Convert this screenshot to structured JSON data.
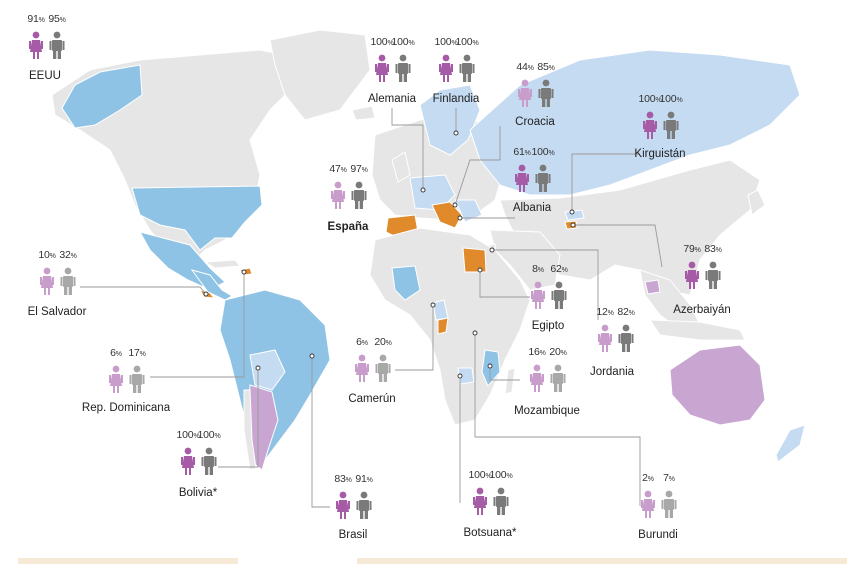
{
  "colors": {
    "ocean": "#ffffff",
    "land": "#e6e6e6",
    "border": "#ffffff",
    "light_blue": "#c4dbf2",
    "mid_blue": "#8ec3e6",
    "orange": "#e08a2c",
    "lilac": "#c9a6d2",
    "women_icon": "#a55ba6",
    "men_icon": "#7a7a7a",
    "women_icon_light": "#c99dcb",
    "men_icon_light": "#a8a8a8",
    "leader": "#9a9a9a"
  },
  "icons": {
    "women": "woman-figure-icon",
    "men": "man-figure-icon"
  },
  "countries": [
    {
      "id": "eeuu",
      "name": "EEUU",
      "women": "91",
      "men": "95",
      "unit": "%"
    },
    {
      "id": "alemania",
      "name": "Alemania",
      "women": "100",
      "men": "100",
      "unit": "%"
    },
    {
      "id": "finlandia",
      "name": "Finlandia",
      "women": "100",
      "men": "100",
      "unit": "%"
    },
    {
      "id": "croacia",
      "name": "Croacia",
      "women": "44",
      "men": "85",
      "unit": "%"
    },
    {
      "id": "kirguistan",
      "name": "Kirguistán",
      "women": "100",
      "men": "100",
      "unit": "%"
    },
    {
      "id": "espana",
      "name": "España",
      "women": "47",
      "men": "97",
      "unit": "%"
    },
    {
      "id": "albania",
      "name": "Albania",
      "women": "61",
      "men": "100",
      "unit": "%"
    },
    {
      "id": "el-salvador",
      "name": "El Salvador",
      "women": "10",
      "men": "32",
      "unit": "%"
    },
    {
      "id": "egipto",
      "name": "Egipto",
      "women": "8",
      "men": "62",
      "unit": "%"
    },
    {
      "id": "azerbaiyan",
      "name": "Azerbaiyán",
      "women": "79",
      "men": "83",
      "unit": "%"
    },
    {
      "id": "jordania",
      "name": "Jordania",
      "women": "12",
      "men": "82",
      "unit": "%"
    },
    {
      "id": "rep-dominicana",
      "name": "Rep. Dominicana",
      "women": "6",
      "men": "17",
      "unit": "%"
    },
    {
      "id": "camerun",
      "name": "Camerún",
      "women": "6",
      "men": "20",
      "unit": "%"
    },
    {
      "id": "mozambique",
      "name": "Mozambique",
      "women": "16",
      "men": "20",
      "unit": "%"
    },
    {
      "id": "bolivia",
      "name": "Bolivia*",
      "women": "100",
      "men": "100",
      "unit": "%"
    },
    {
      "id": "brasil",
      "name": "Brasil",
      "women": "83",
      "men": "91",
      "unit": "%"
    },
    {
      "id": "botsuana",
      "name": "Botsuana*",
      "women": "100",
      "men": "100",
      "unit": "%"
    },
    {
      "id": "burundi",
      "name": "Burundi",
      "women": "2",
      "men": "7",
      "unit": "%"
    }
  ]
}
